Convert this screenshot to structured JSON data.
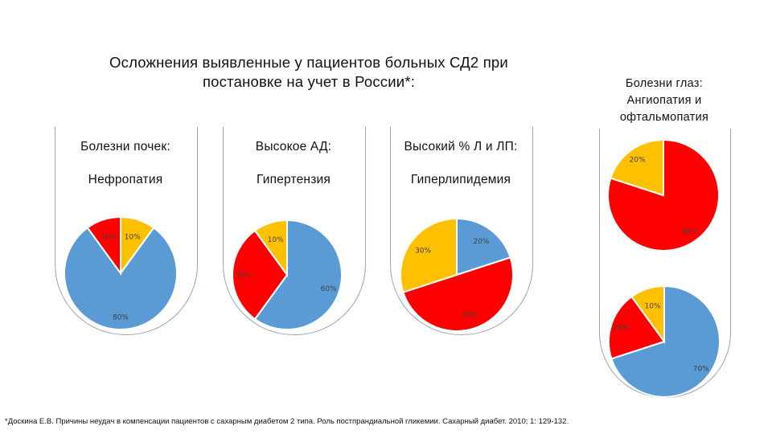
{
  "title": "Осложнения выявленные у пациентов больных СД2 при\nпостановке на учет в России*:",
  "colors": {
    "blue": "#5b9bd5",
    "red": "#ff0000",
    "yellow": "#ffc000"
  },
  "chart_data": [
    {
      "type": "pie",
      "title_line1": "Болезни почек:",
      "title_line2": "Нефропатия",
      "slices": [
        {
          "label": "10%",
          "value": 10,
          "color": "#ffc000"
        },
        {
          "label": "80%",
          "value": 80,
          "color": "#5b9bd5"
        },
        {
          "label": "10%",
          "value": 10,
          "color": "#ff0000"
        }
      ]
    },
    {
      "type": "pie",
      "title_line1": "Высокое АД:",
      "title_line2": "Гипертензия",
      "slices": [
        {
          "label": "60%",
          "value": 60,
          "color": "#5b9bd5"
        },
        {
          "label": "30%",
          "value": 30,
          "color": "#ff0000"
        },
        {
          "label": "10%",
          "value": 10,
          "color": "#ffc000"
        }
      ]
    },
    {
      "type": "pie",
      "title_line1": "Высокий % Л и ЛП:",
      "title_line2": "Гиперлипидемия",
      "slices": [
        {
          "label": "20%",
          "value": 20,
          "color": "#5b9bd5"
        },
        {
          "label": "50%",
          "value": 50,
          "color": "#ff0000"
        },
        {
          "label": "30%",
          "value": 30,
          "color": "#ffc000"
        }
      ]
    },
    {
      "type": "pie",
      "title": "Болезни глаз:\nАнгиопатия и\nофтальмопатия",
      "slices": [
        {
          "label": "80%",
          "value": 80,
          "color": "#ff0000"
        },
        {
          "label": "20%",
          "value": 20,
          "color": "#ffc000"
        }
      ]
    },
    {
      "type": "pie",
      "slices": [
        {
          "label": "70%",
          "value": 70,
          "color": "#5b9bd5"
        },
        {
          "label": "20%",
          "value": 20,
          "color": "#ff0000"
        },
        {
          "label": "10%",
          "value": 10,
          "color": "#ffc000"
        }
      ]
    }
  ],
  "footnote": "*Доскина Е.В. Причины неудач в компенсации пациентов с сахарным диабетом 2 типа. Роль постпрандиальной гликемии. Сахарный диабет. 2010; 1: 129-132."
}
